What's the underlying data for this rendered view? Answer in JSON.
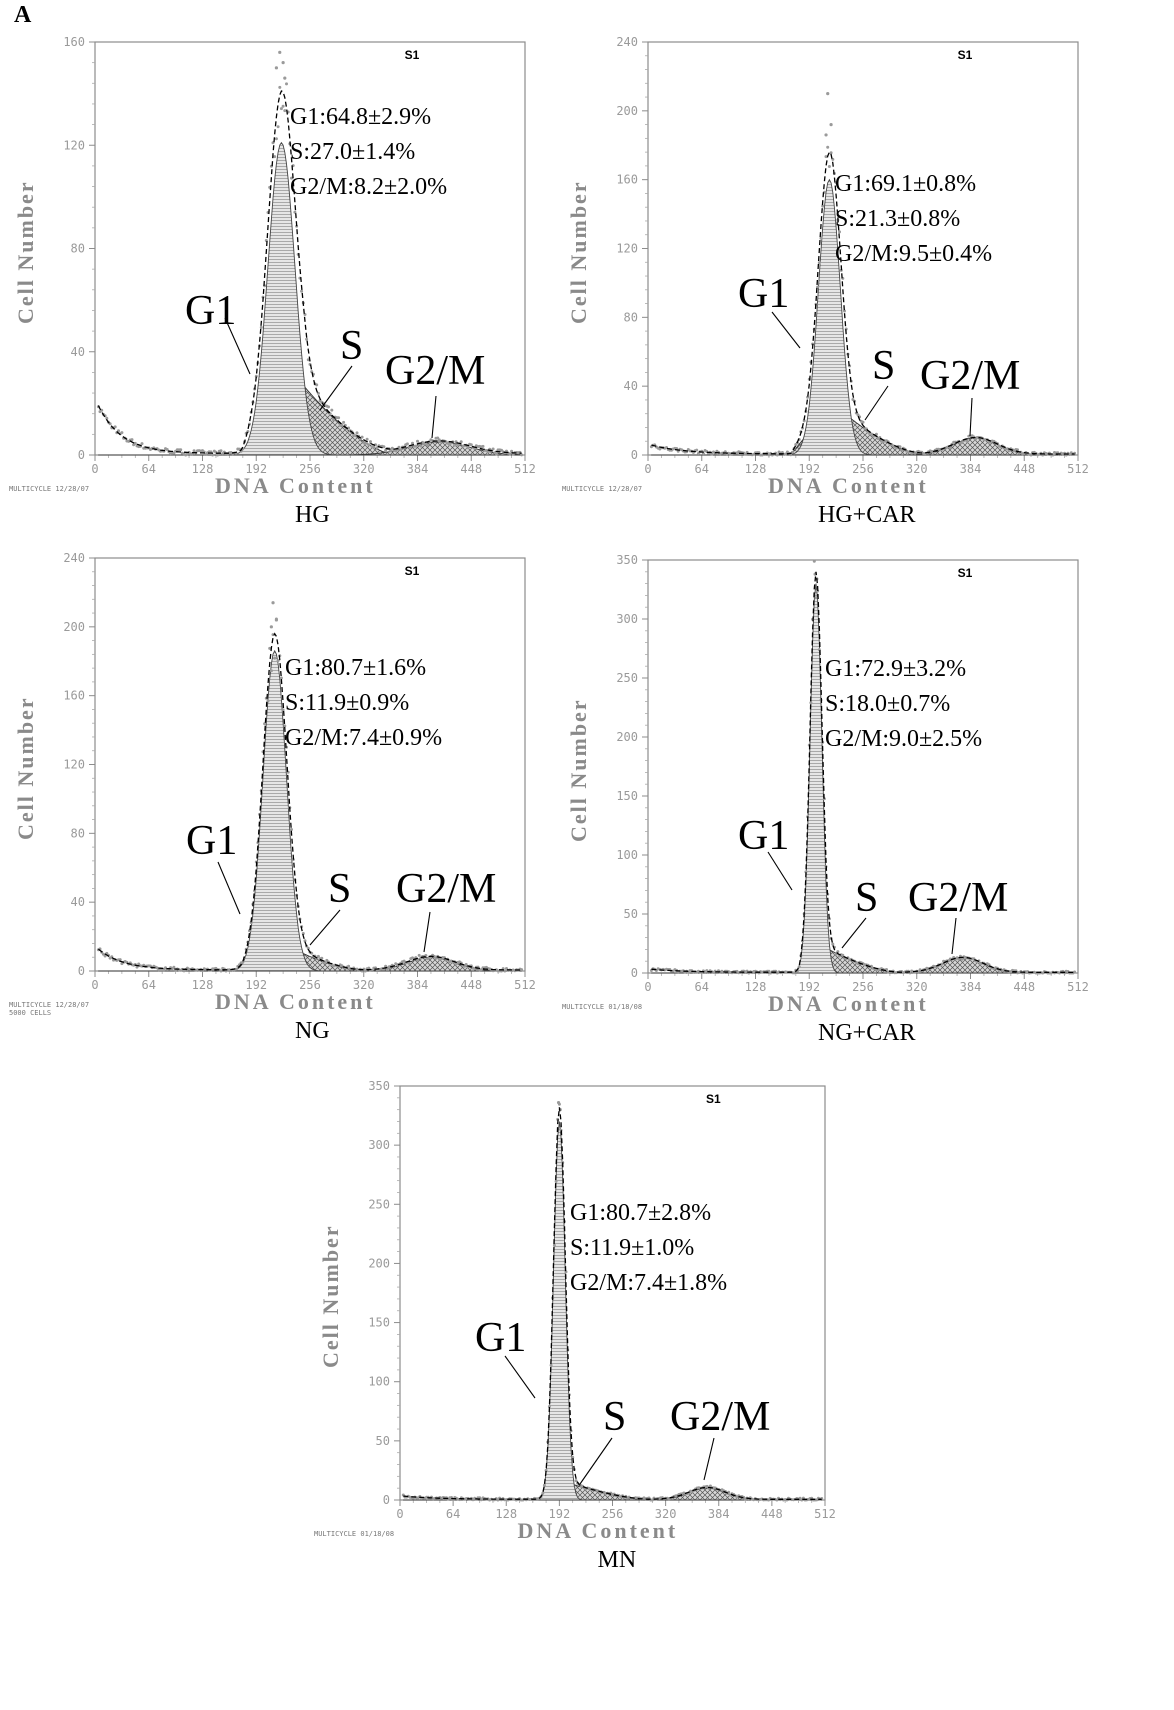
{
  "figure_label": "A",
  "chart_data": [
    {
      "id": "hg",
      "type": "area",
      "condition": "HG",
      "tag": "S1",
      "footer": [
        "MULTICYCLE 12/28/07"
      ],
      "xlabel": "DNA Content",
      "ylabel": "Cell Number",
      "xlim": [
        0,
        512
      ],
      "ylim": [
        0,
        160
      ],
      "xticks": [
        0,
        64,
        128,
        192,
        256,
        320,
        384,
        448,
        512
      ],
      "yticks": [
        0,
        40,
        80,
        120,
        160
      ],
      "stats": [
        "G1:64.8±2.9%",
        "S:27.0±1.4%",
        "G2/M:8.2±2.0%"
      ],
      "phase_labels": {
        "g1": "G1",
        "s": "S",
        "g2m": "G2/M"
      },
      "fit": {
        "g1": {
          "center": 222,
          "height": 121,
          "width": 16
        },
        "s": {
          "start": 175,
          "peak": 248,
          "height": 27,
          "end": 360
        },
        "g2m": {
          "center": 410,
          "height": 5,
          "width": 36
        },
        "debris": {
          "height": 22,
          "decay": 28
        },
        "envelope_peak": 141
      },
      "outliers": [
        [
          220,
          156
        ],
        [
          224,
          152
        ],
        [
          226,
          146
        ],
        [
          216,
          150
        ]
      ]
    },
    {
      "id": "hg-car",
      "type": "area",
      "condition": "HG+CAR",
      "tag": "S1",
      "footer": [
        "MULTICYCLE 12/28/07"
      ],
      "xlabel": "DNA Content",
      "ylabel": "Cell Number",
      "xlim": [
        0,
        512
      ],
      "ylim": [
        0,
        240
      ],
      "xticks": [
        0,
        64,
        128,
        192,
        256,
        320,
        384,
        448,
        512
      ],
      "yticks": [
        0,
        40,
        80,
        120,
        160,
        200,
        240
      ],
      "stats": [
        "G1:69.1±0.8%",
        "S:21.3±0.8%",
        "G2/M:9.5±0.4%"
      ],
      "phase_labels": {
        "g1": "G1",
        "s": "S",
        "g2m": "G2/M"
      },
      "fit": {
        "g1": {
          "center": 216,
          "height": 160,
          "width": 13
        },
        "s": {
          "start": 170,
          "peak": 232,
          "height": 25,
          "end": 330
        },
        "g2m": {
          "center": 390,
          "height": 10,
          "width": 26
        },
        "debris": {
          "height": 6,
          "decay": 40
        },
        "envelope_peak": 176
      },
      "outliers": [
        [
          214,
          210
        ],
        [
          218,
          192
        ],
        [
          212,
          186
        ]
      ]
    },
    {
      "id": "ng",
      "type": "area",
      "condition": "NG",
      "tag": "S1",
      "footer": [
        "MULTICYCLE 12/28/07",
        "5000 CELLS"
      ],
      "xlabel": "DNA Content",
      "ylabel": "Cell Number",
      "xlim": [
        0,
        512
      ],
      "ylim": [
        0,
        240
      ],
      "xticks": [
        0,
        64,
        128,
        192,
        256,
        320,
        384,
        448,
        512
      ],
      "yticks": [
        0,
        40,
        80,
        120,
        160,
        200,
        240
      ],
      "stats": [
        "G1:80.7±1.6%",
        "S:11.9±0.9%",
        "G2/M:7.4±0.9%"
      ],
      "phase_labels": {
        "g1": "G1",
        "s": "S",
        "g2m": "G2/M"
      },
      "fit": {
        "g1": {
          "center": 214,
          "height": 186,
          "width": 14
        },
        "s": {
          "start": 175,
          "peak": 236,
          "height": 13,
          "end": 320
        },
        "g2m": {
          "center": 400,
          "height": 8,
          "width": 28
        },
        "debris": {
          "height": 14,
          "decay": 30
        },
        "envelope_peak": 196
      },
      "outliers": [
        [
          212,
          214
        ],
        [
          216,
          204
        ],
        [
          210,
          200
        ]
      ]
    },
    {
      "id": "ng-car",
      "type": "area",
      "condition": "NG+CAR",
      "tag": "S1",
      "footer": [
        "MULTICYCLE 01/18/08"
      ],
      "xlabel": "DNA Content",
      "ylabel": "Cell Number",
      "xlim": [
        0,
        512
      ],
      "ylim": [
        0,
        350
      ],
      "xticks": [
        0,
        64,
        128,
        192,
        256,
        320,
        384,
        448,
        512
      ],
      "yticks": [
        0,
        50,
        100,
        150,
        200,
        250,
        300,
        350
      ],
      "stats": [
        "G1:72.9±3.2%",
        "S:18.0±0.7%",
        "G2/M:9.0±2.5%"
      ],
      "phase_labels": {
        "g1": "G1",
        "s": "S",
        "g2m": "G2/M"
      },
      "fit": {
        "g1": {
          "center": 200,
          "height": 330,
          "width": 7
        },
        "s": {
          "start": 180,
          "peak": 210,
          "height": 22,
          "end": 300
        },
        "g2m": {
          "center": 375,
          "height": 13,
          "width": 24
        },
        "debris": {
          "height": 3,
          "decay": 40
        },
        "envelope_peak": 340
      },
      "outliers": [
        [
          199,
          338
        ],
        [
          201,
          334
        ]
      ]
    },
    {
      "id": "mn",
      "type": "area",
      "condition": "MN",
      "tag": "S1",
      "footer": [
        "MULTICYCLE 01/18/08"
      ],
      "xlabel": "DNA Content",
      "ylabel": "Cell Number",
      "xlim": [
        0,
        512
      ],
      "ylim": [
        0,
        350
      ],
      "xticks": [
        0,
        64,
        128,
        192,
        256,
        320,
        384,
        448,
        512
      ],
      "yticks": [
        0,
        50,
        100,
        150,
        200,
        250,
        300,
        350
      ],
      "stats": [
        "G1:80.7±2.8%",
        "S:11.9±1.0%",
        "G2/M:7.4±1.8%"
      ],
      "phase_labels": {
        "g1": "G1",
        "s": "S",
        "g2m": "G2/M"
      },
      "fit": {
        "g1": {
          "center": 192,
          "height": 320,
          "width": 7
        },
        "s": {
          "start": 175,
          "peak": 205,
          "height": 14,
          "end": 300
        },
        "g2m": {
          "center": 370,
          "height": 10,
          "width": 22
        },
        "debris": {
          "height": 3,
          "decay": 40
        },
        "envelope_peak": 332
      },
      "outliers": [
        [
          191,
          336
        ],
        [
          193,
          330
        ]
      ]
    }
  ]
}
